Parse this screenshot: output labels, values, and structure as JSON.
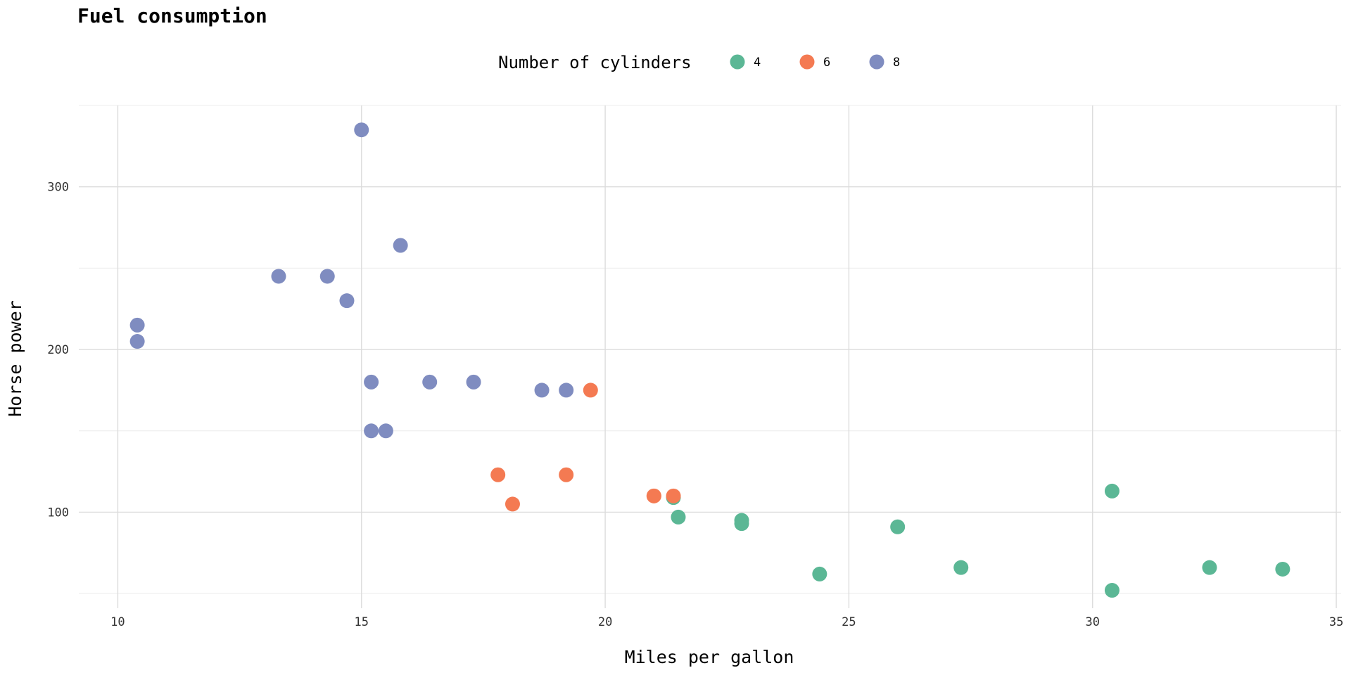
{
  "chart_data": {
    "type": "scatter",
    "title": "Fuel consumption",
    "xlabel": "Miles per gallon",
    "ylabel": "Horse power",
    "xlim": [
      9.2,
      35.1
    ],
    "ylim": [
      41,
      350
    ],
    "x_ticks": [
      10,
      15,
      20,
      25,
      30,
      35
    ],
    "y_ticks": [
      100,
      200,
      300
    ],
    "grid": true,
    "legend": {
      "title": "Number of cylinders",
      "position": "top",
      "entries": [
        "4",
        "6",
        "8"
      ]
    },
    "colors": {
      "4": "#5bb795",
      "6": "#f47a52",
      "8": "#7f8cc0"
    },
    "series": [
      {
        "name": "4",
        "points": [
          {
            "x": 22.8,
            "y": 93
          },
          {
            "x": 24.4,
            "y": 62
          },
          {
            "x": 22.8,
            "y": 95
          },
          {
            "x": 32.4,
            "y": 66
          },
          {
            "x": 30.4,
            "y": 52
          },
          {
            "x": 33.9,
            "y": 65
          },
          {
            "x": 21.5,
            "y": 97
          },
          {
            "x": 27.3,
            "y": 66
          },
          {
            "x": 26.0,
            "y": 91
          },
          {
            "x": 30.4,
            "y": 113
          },
          {
            "x": 21.4,
            "y": 109
          }
        ]
      },
      {
        "name": "6",
        "points": [
          {
            "x": 21.0,
            "y": 110
          },
          {
            "x": 21.0,
            "y": 110
          },
          {
            "x": 21.4,
            "y": 110
          },
          {
            "x": 18.1,
            "y": 105
          },
          {
            "x": 19.2,
            "y": 123
          },
          {
            "x": 17.8,
            "y": 123
          },
          {
            "x": 19.7,
            "y": 175
          }
        ]
      },
      {
        "name": "8",
        "points": [
          {
            "x": 18.7,
            "y": 175
          },
          {
            "x": 14.3,
            "y": 245
          },
          {
            "x": 16.4,
            "y": 180
          },
          {
            "x": 17.3,
            "y": 180
          },
          {
            "x": 15.2,
            "y": 180
          },
          {
            "x": 10.4,
            "y": 205
          },
          {
            "x": 10.4,
            "y": 215
          },
          {
            "x": 14.7,
            "y": 230
          },
          {
            "x": 15.5,
            "y": 150
          },
          {
            "x": 15.2,
            "y": 150
          },
          {
            "x": 13.3,
            "y": 245
          },
          {
            "x": 19.2,
            "y": 175
          },
          {
            "x": 15.8,
            "y": 264
          },
          {
            "x": 15.0,
            "y": 335
          }
        ]
      }
    ]
  }
}
